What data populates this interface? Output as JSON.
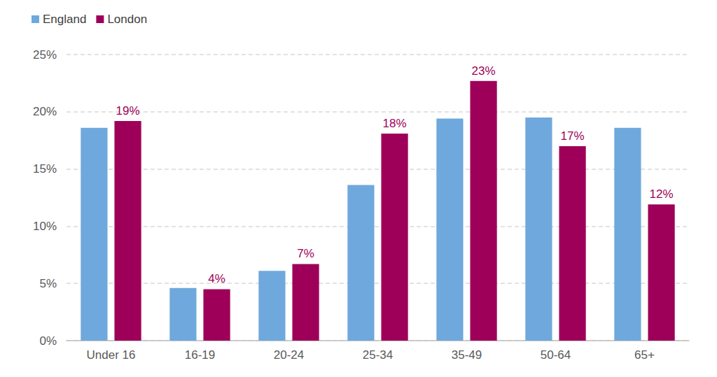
{
  "chart_data": {
    "type": "bar",
    "categories": [
      "Under 16",
      "16-19",
      "20-24",
      "25-34",
      "35-49",
      "50-64",
      "65+"
    ],
    "series": [
      {
        "name": "England",
        "color": "#6fa8dc",
        "values": [
          18.6,
          4.6,
          6.1,
          13.6,
          19.4,
          19.5,
          18.6
        ]
      },
      {
        "name": "London",
        "color": "#9e0059",
        "values": [
          19.2,
          4.5,
          6.7,
          18.1,
          22.7,
          17.0,
          11.9
        ],
        "value_labels": [
          "19%",
          "4%",
          "7%",
          "18%",
          "23%",
          "17%",
          "12%"
        ]
      }
    ],
    "ylim": [
      0,
      25
    ],
    "yticks": [
      {
        "value": 0,
        "label": "0%"
      },
      {
        "value": 5,
        "label": "5%"
      },
      {
        "value": 10,
        "label": "10%"
      },
      {
        "value": 15,
        "label": "15%"
      },
      {
        "value": 20,
        "label": "20%"
      },
      {
        "value": 25,
        "label": "25%"
      }
    ],
    "grid": true,
    "legend": "top-left"
  }
}
